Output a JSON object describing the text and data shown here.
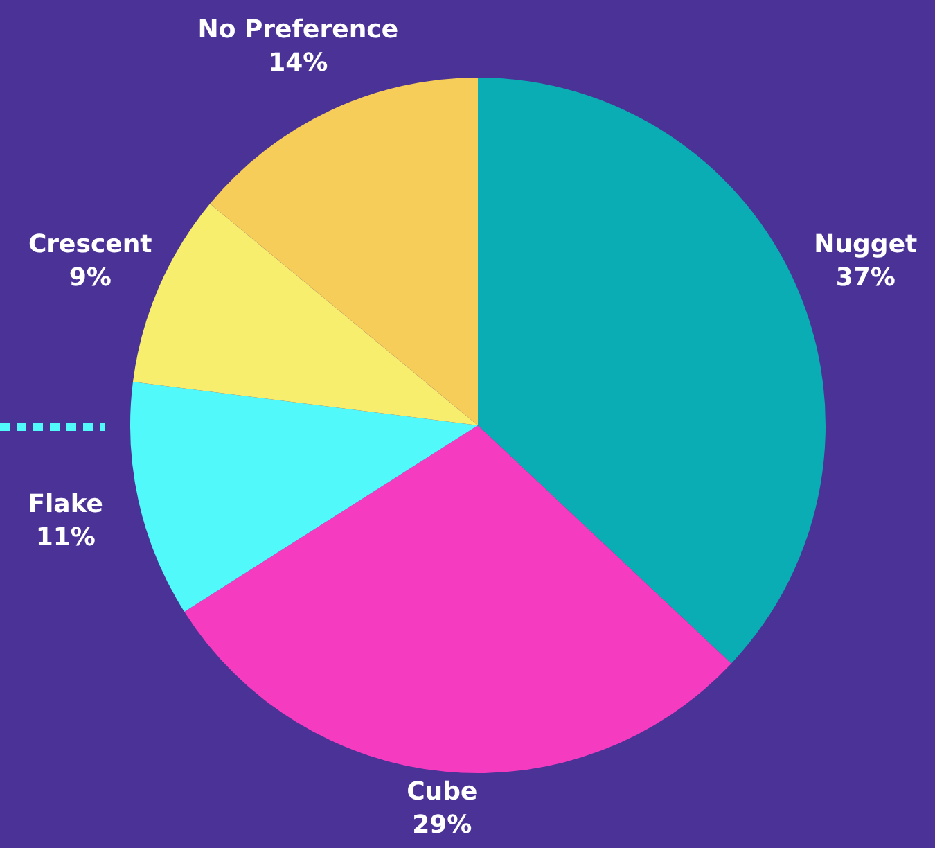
{
  "chart_data": {
    "type": "pie",
    "categories": [
      "Nugget",
      "Cube",
      "Flake",
      "Crescent",
      "No Preference"
    ],
    "values": [
      37,
      29,
      11,
      9,
      14
    ],
    "value_labels": [
      "37%",
      "29%",
      "11%",
      "9%",
      "14%"
    ],
    "colors": [
      "#0aadb3",
      "#f53cc1",
      "#52f9fb",
      "#f8ee6e",
      "#f6cd58"
    ]
  }
}
